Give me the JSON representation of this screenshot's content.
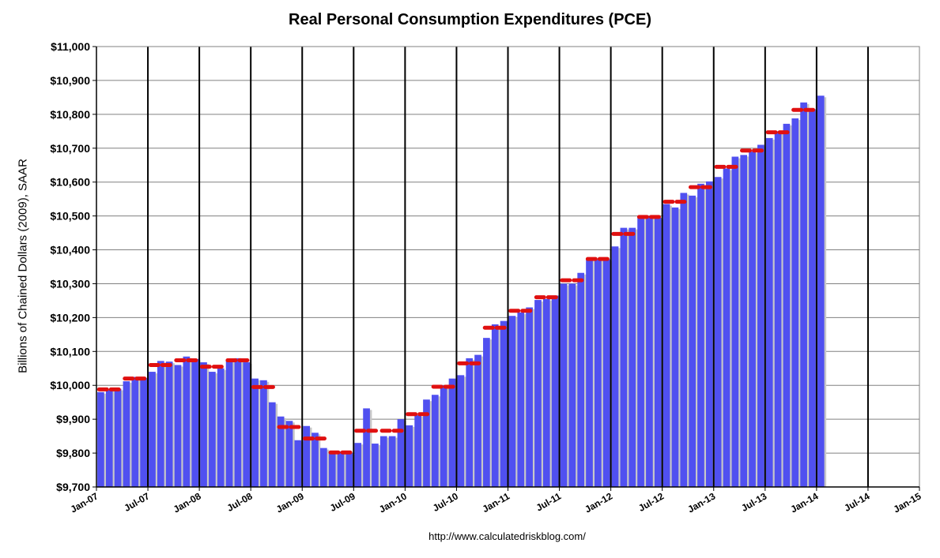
{
  "chart_data": {
    "type": "bar",
    "title": "Real Personal Consumption Expenditures (PCE)",
    "ylabel": "Billions of Chained Dollars (2009), SAAR",
    "xlabel": "",
    "source": "http://www.calculatedriskblog.com/",
    "ylim": [
      9700,
      11000
    ],
    "y_ticks": [
      "$9,700",
      "$9,800",
      "$9,900",
      "$10,000",
      "$10,100",
      "$10,200",
      "$10,300",
      "$10,400",
      "$10,500",
      "$10,600",
      "$10,700",
      "$10,800",
      "$10,900",
      "$11,000"
    ],
    "x_ticks": [
      "Jan-07",
      "Jul-07",
      "Jan-08",
      "Jul-08",
      "Jan-09",
      "Jul-09",
      "Jan-10",
      "Jul-10",
      "Jan-11",
      "Jul-11",
      "Jan-12",
      "Jul-12",
      "Jan-13",
      "Jul-13",
      "Jan-14",
      "Jul-14",
      "Jan-15"
    ],
    "x_range_months": [
      "2007-01",
      "2015-01"
    ],
    "grid": "vertical lines at each half-year; horizontal gridlines at each $100",
    "series": [
      {
        "kind": "monthly bars",
        "color": "#5050f0",
        "start": "2007-01",
        "values": [
          9980,
          9988,
          9990,
          10012,
          10025,
          10022,
          10040,
          10072,
          10070,
          10060,
          10085,
          10078,
          10068,
          10040,
          10050,
          10075,
          10080,
          10068,
          10020,
          10015,
          9950,
          9908,
          9895,
          9838,
          9880,
          9860,
          9815,
          9800,
          9805,
          9800,
          9830,
          9932,
          9828,
          9850,
          9850,
          9900,
          9882,
          9912,
          9958,
          9972,
          10000,
          10020,
          10030,
          10080,
          10090,
          10140,
          10180,
          10190,
          10205,
          10215,
          10230,
          10252,
          10255,
          10265,
          10300,
          10300,
          10332,
          10375,
          10372,
          10372,
          10410,
          10465,
          10465,
          10500,
          10500,
          10495,
          10535,
          10525,
          10568,
          10560,
          10595,
          10602,
          10615,
          10640,
          10675,
          10680,
          10690,
          10710,
          10730,
          10750,
          10772,
          10788,
          10835,
          10815,
          10855
        ]
      },
      {
        "kind": "quarterly average markers",
        "color": "#e01010",
        "start": "2007-Q1",
        "values": [
          9988,
          10020,
          10060,
          10074,
          10055,
          10074,
          9995,
          9877,
          9843,
          9802,
          9866,
          9866,
          9915,
          9996,
          10065,
          10170,
          10220,
          10260,
          10310,
          10373,
          10447,
          10497,
          10542,
          10585,
          10645,
          10693,
          10747,
          10813
        ]
      }
    ]
  }
}
